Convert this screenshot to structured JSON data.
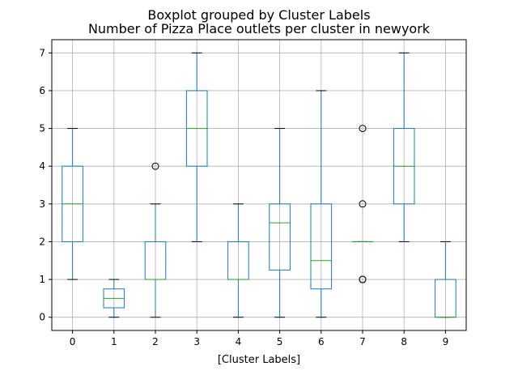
{
  "chart_data": {
    "type": "boxplot",
    "suptitle": "Boxplot grouped by Cluster Labels",
    "title": "Number of Pizza Place outlets per cluster in newyork",
    "xlabel": "[Cluster Labels]",
    "ylabel": "",
    "ylim": [
      -0.35,
      7.35
    ],
    "yticks": [
      0,
      1,
      2,
      3,
      4,
      5,
      6,
      7
    ],
    "grid": true,
    "categories": [
      "0",
      "1",
      "2",
      "3",
      "4",
      "5",
      "6",
      "7",
      "8",
      "9"
    ],
    "boxes": [
      {
        "category": "0",
        "whisker_low": 1,
        "q1": 2,
        "median": 3,
        "q3": 4,
        "whisker_high": 5,
        "fliers": []
      },
      {
        "category": "1",
        "whisker_low": 0,
        "q1": 0.25,
        "median": 0.5,
        "q3": 0.75,
        "whisker_high": 1,
        "fliers": []
      },
      {
        "category": "2",
        "whisker_low": 0,
        "q1": 1,
        "median": 1,
        "q3": 2,
        "whisker_high": 3,
        "fliers": [
          4
        ]
      },
      {
        "category": "3",
        "whisker_low": 2,
        "q1": 4,
        "median": 5,
        "q3": 6,
        "whisker_high": 7,
        "fliers": []
      },
      {
        "category": "4",
        "whisker_low": 0,
        "q1": 1,
        "median": 1,
        "q3": 2,
        "whisker_high": 3,
        "fliers": []
      },
      {
        "category": "5",
        "whisker_low": 0,
        "q1": 1.25,
        "median": 2.5,
        "q3": 3,
        "whisker_high": 5,
        "fliers": []
      },
      {
        "category": "6",
        "whisker_low": 0,
        "q1": 0.75,
        "median": 1.5,
        "q3": 3,
        "whisker_high": 6,
        "fliers": []
      },
      {
        "category": "7",
        "whisker_low": 2,
        "q1": 2,
        "median": 2,
        "q3": 2,
        "whisker_high": 2,
        "fliers": [
          1,
          1,
          3,
          5
        ]
      },
      {
        "category": "8",
        "whisker_low": 2,
        "q1": 3,
        "median": 4,
        "q3": 5,
        "whisker_high": 7,
        "fliers": []
      },
      {
        "category": "9",
        "whisker_low": 0,
        "q1": 0,
        "median": 0,
        "q3": 1,
        "whisker_high": 2,
        "fliers": []
      }
    ],
    "colors": {
      "box": "#1f77b4",
      "median": "#2ca02c",
      "whisker_cap": "#000000",
      "grid": "#b0b0b0",
      "axes": "#000000"
    }
  }
}
